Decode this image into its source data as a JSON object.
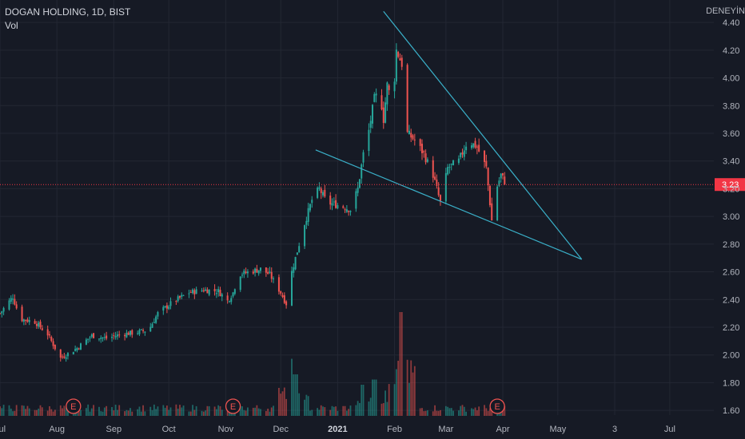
{
  "header": {
    "symbol": "DOGAN HOLDING, 1D, BIST",
    "volume_label": "Vol",
    "brand_corner": "DENEYİN"
  },
  "price_scale": {
    "ticks": [
      "4.40",
      "4.20",
      "4.00",
      "3.80",
      "3.60",
      "3.40",
      "3.20",
      "3.00",
      "2.80",
      "2.60",
      "2.40",
      "2.20",
      "2.00",
      "1.80",
      "1.60"
    ],
    "last_price_label": "3.23",
    "last_price_color": "#f23645"
  },
  "time_axis": {
    "ticks": [
      "Jul",
      "Aug",
      "Sep",
      "Oct",
      "Nov",
      "Dec",
      "2021",
      "Feb",
      "Mar",
      "Apr",
      "May",
      "3",
      "Jul"
    ]
  },
  "earnings_markers": [
    {
      "label": "E"
    },
    {
      "label": "E"
    },
    {
      "label": "E"
    }
  ],
  "colors": {
    "background": "#161a25",
    "grid": "#232733",
    "up": "#26a69a",
    "down": "#ef5350",
    "trendline": "#3ab0c9",
    "text": "#b2b5be"
  },
  "chart_data": {
    "type": "candlestick",
    "title": "DOGAN HOLDING, 1D, BIST",
    "ylabel": "",
    "xlabel": "",
    "ylim": [
      1.52,
      4.47
    ],
    "x_range": [
      "2020-07-01",
      "2021-07-25"
    ],
    "grid": true,
    "legend": "top-left",
    "last_price": 3.23,
    "price_waypoints": [
      [
        "2020-07-01",
        2.3
      ],
      [
        "2020-07-05",
        2.37
      ],
      [
        "2020-07-08",
        2.42
      ],
      [
        "2020-07-12",
        2.26
      ],
      [
        "2020-07-20",
        2.24
      ],
      [
        "2020-07-27",
        2.15
      ],
      [
        "2020-07-31",
        2.05
      ],
      [
        "2020-08-02",
        1.97
      ],
      [
        "2020-08-06",
        2.0
      ],
      [
        "2020-08-12",
        2.05
      ],
      [
        "2020-08-20",
        2.14
      ],
      [
        "2020-08-28",
        2.12
      ],
      [
        "2020-09-05",
        2.15
      ],
      [
        "2020-09-12",
        2.16
      ],
      [
        "2020-09-20",
        2.18
      ],
      [
        "2020-09-25",
        2.3
      ],
      [
        "2020-10-03",
        2.38
      ],
      [
        "2020-10-12",
        2.45
      ],
      [
        "2020-10-20",
        2.47
      ],
      [
        "2020-10-28",
        2.46
      ],
      [
        "2020-11-02",
        2.39
      ],
      [
        "2020-11-05",
        2.45
      ],
      [
        "2020-11-08",
        2.58
      ],
      [
        "2020-11-14",
        2.6
      ],
      [
        "2020-11-20",
        2.62
      ],
      [
        "2020-11-25",
        2.58
      ],
      [
        "2020-12-01",
        2.45
      ],
      [
        "2020-12-04",
        2.37
      ],
      [
        "2020-12-06",
        2.55
      ],
      [
        "2020-12-10",
        2.75
      ],
      [
        "2020-12-14",
        2.95
      ],
      [
        "2020-12-18",
        3.12
      ],
      [
        "2020-12-22",
        3.2
      ],
      [
        "2020-12-26",
        3.1
      ],
      [
        "2021-01-02",
        3.08
      ],
      [
        "2021-01-08",
        3.05
      ],
      [
        "2021-01-12",
        3.2
      ],
      [
        "2021-01-15",
        3.45
      ],
      [
        "2021-01-18",
        3.62
      ],
      [
        "2021-01-21",
        3.85
      ],
      [
        "2021-01-24",
        3.9
      ],
      [
        "2021-01-26",
        3.7
      ],
      [
        "2021-01-28",
        3.95
      ],
      [
        "2021-01-31",
        3.8
      ],
      [
        "2021-02-02",
        4.2
      ],
      [
        "2021-02-05",
        4.1
      ],
      [
        "2021-02-08",
        3.6
      ],
      [
        "2021-02-12",
        3.55
      ],
      [
        "2021-02-17",
        3.45
      ],
      [
        "2021-02-22",
        3.3
      ],
      [
        "2021-02-26",
        3.1
      ],
      [
        "2021-03-02",
        3.35
      ],
      [
        "2021-03-08",
        3.4
      ],
      [
        "2021-03-13",
        3.55
      ],
      [
        "2021-03-18",
        3.5
      ],
      [
        "2021-03-23",
        3.35
      ],
      [
        "2021-03-26",
        2.97
      ],
      [
        "2021-03-28",
        3.18
      ],
      [
        "2021-03-31",
        3.3
      ],
      [
        "2021-04-03",
        3.23
      ]
    ],
    "volume_spikes": [
      {
        "date": "2020-12-06",
        "relative": 0.55
      },
      {
        "date": "2020-12-09",
        "relative": 0.4
      },
      {
        "date": "2021-01-15",
        "relative": 0.3
      },
      {
        "date": "2021-01-21",
        "relative": 0.35
      },
      {
        "date": "2021-02-05",
        "relative": 1.0
      },
      {
        "date": "2021-02-03",
        "relative": 0.45
      }
    ],
    "trendlines": [
      {
        "name": "upper",
        "from": [
          "2021-01-26",
          4.48
        ],
        "to": [
          "2021-05-14",
          2.69
        ]
      },
      {
        "name": "lower",
        "from": [
          "2020-12-20",
          3.48
        ],
        "to": [
          "2021-05-14",
          2.69
        ]
      }
    ]
  }
}
